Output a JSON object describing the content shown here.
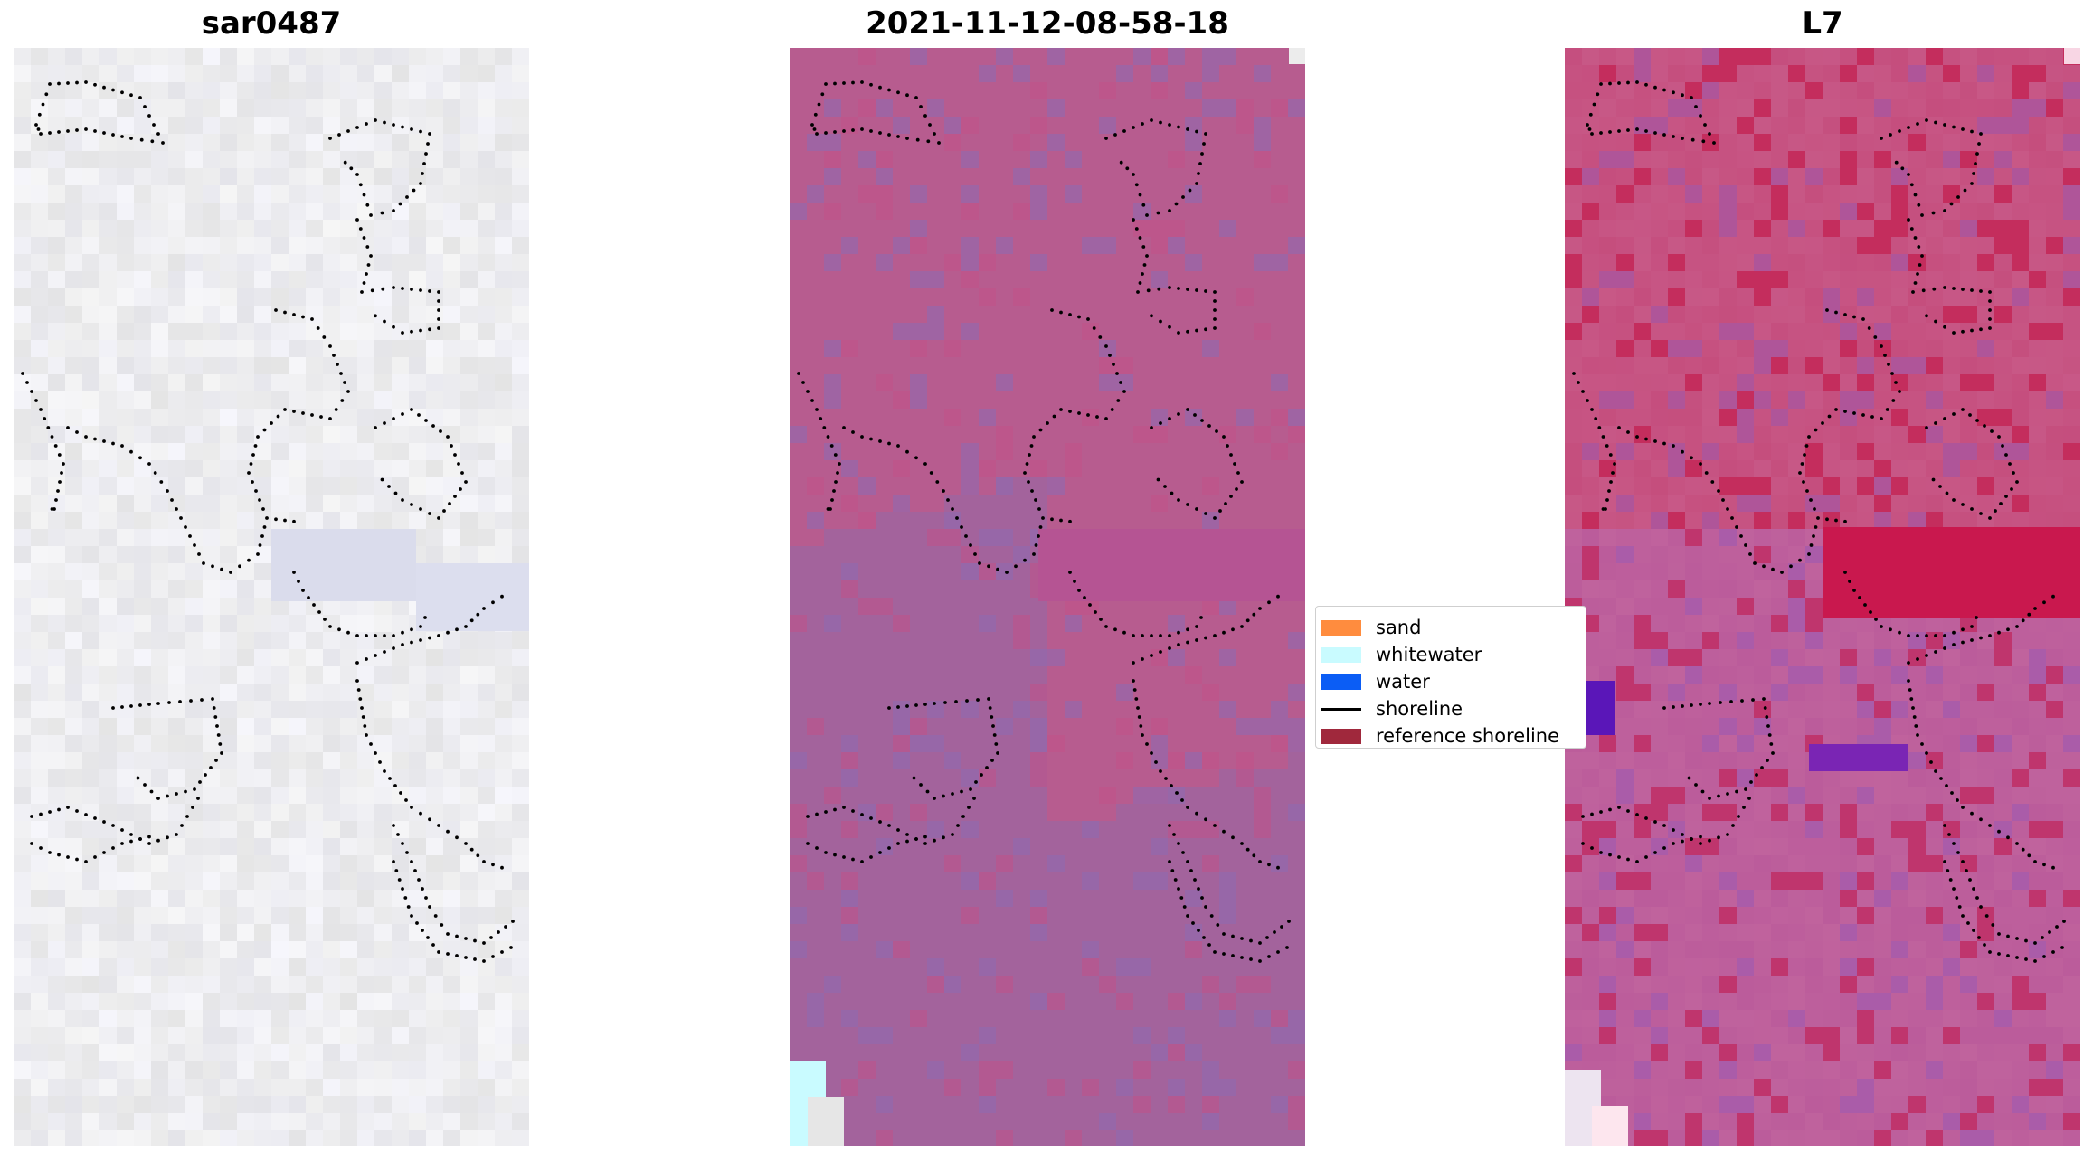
{
  "panels": [
    {
      "id": "sar",
      "title": "sar0487"
    },
    {
      "id": "classified",
      "title": "2021-11-12-08-58-18"
    },
    {
      "id": "l7",
      "title": "L7"
    }
  ],
  "legend": {
    "items": [
      {
        "label": "sand",
        "color": "#ff8c3e",
        "kind": "patch"
      },
      {
        "label": "whitewater",
        "color": "#c9fbff",
        "kind": "patch"
      },
      {
        "label": "water",
        "color": "#0b5df5",
        "kind": "patch"
      },
      {
        "label": "shoreline",
        "color": "#000000",
        "kind": "line"
      },
      {
        "label": "reference shoreline",
        "color": "#a0283c",
        "kind": "patch"
      }
    ]
  },
  "colors": {
    "sar_base": "#eceff0",
    "classified_base": "#b75c8f",
    "classified_water": "#a3639c",
    "l7_base": "#c04d80",
    "l7_accent": "#c4103f",
    "l7_purple": "#5a16b8"
  }
}
